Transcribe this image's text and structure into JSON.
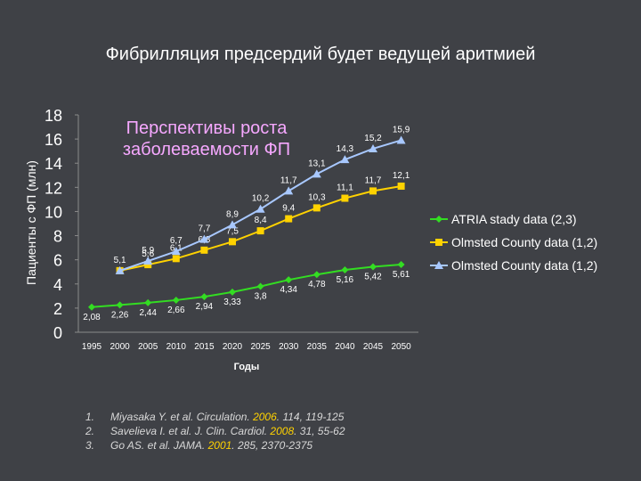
{
  "slide": {
    "title": "Фибрилляция предсердий будет ведущей аритмией"
  },
  "chart_data": {
    "type": "line",
    "title": "Перспективы роста заболеваемости ФП",
    "xlabel": "Годы",
    "ylabel": "Пациенты с ФП (млн)",
    "ylim": [
      0,
      18
    ],
    "yticks": [
      0,
      2,
      4,
      6,
      8,
      10,
      12,
      14,
      16,
      18
    ],
    "categories": [
      "1995",
      "2000",
      "2005",
      "2010",
      "2015",
      "2020",
      "2025",
      "2030",
      "2035",
      "2040",
      "2045",
      "2050"
    ],
    "grid": false,
    "legend_position": "right",
    "title_color": "#f6a8ff",
    "series": [
      {
        "name": "ATRIA stady data (2,3)",
        "color": "#33dd22",
        "marker": "diamond",
        "values": [
          2.08,
          2.26,
          2.44,
          2.66,
          2.94,
          3.33,
          3.8,
          4.34,
          4.78,
          5.16,
          5.42,
          5.61
        ],
        "labels": [
          "2,08",
          "2,26",
          "2,44",
          "2,66",
          "2,94",
          "3,33",
          "3,8",
          "4,34",
          "4,78",
          "5,16",
          "5,42",
          "5,61"
        ]
      },
      {
        "name": "Olmsted County data (1,2)",
        "color": "#ffd200",
        "marker": "square",
        "values": [
          null,
          5.1,
          5.6,
          6.1,
          6.8,
          7.5,
          8.4,
          9.4,
          10.3,
          11.1,
          11.7,
          12.1
        ],
        "labels": [
          null,
          "5,1",
          "5,6",
          "6,1",
          "6,8",
          "7,5",
          "8,4",
          "9,4",
          "10,3",
          "11,1",
          "11,7",
          "12,1"
        ]
      },
      {
        "name": "Olmsted County data (1,2)",
        "color": "#a8c8ff",
        "marker": "triangle",
        "values": [
          null,
          5.1,
          5.9,
          6.7,
          7.7,
          8.9,
          10.2,
          11.7,
          13.1,
          14.3,
          15.2,
          15.9
        ],
        "labels": [
          null,
          null,
          "5,9",
          "6,7",
          "7,7",
          "8,9",
          "10,2",
          "11,7",
          "13,1",
          "14,3",
          "15,2",
          "15,9"
        ]
      }
    ]
  },
  "references": [
    {
      "num": "1.",
      "pre": "Miyasaka Y. et al. Circulation. ",
      "year": "2006",
      "post": ". 114, 119-125"
    },
    {
      "num": "2.",
      "pre": "Savelieva I. et al. J. Clin. Cardiol. ",
      "year": "2008",
      "post": ". 31, 55-62"
    },
    {
      "num": "3.",
      "pre": "Go AS. et al. JAMA. ",
      "year": "2001",
      "post": ". 285, 2370-2375"
    }
  ]
}
